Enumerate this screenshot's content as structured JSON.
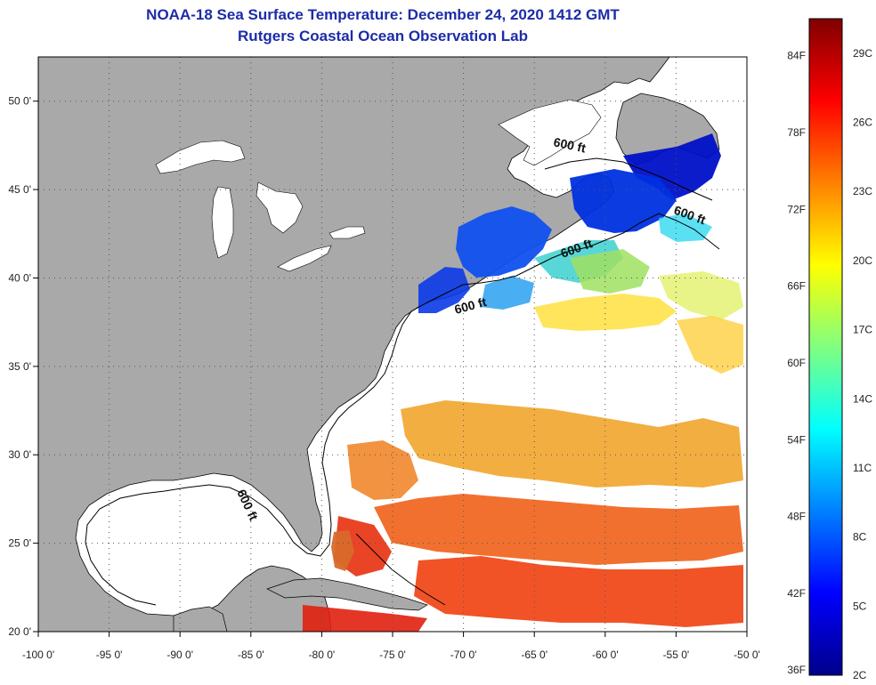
{
  "header": {
    "title": "NOAA-18 Sea Surface Temperature:  December 24, 2020 1412 GMT",
    "subtitle": "Rutgers Coastal Ocean Observation Lab"
  },
  "map": {
    "lon_labels": [
      "-100 0'",
      "-95 0'",
      "-90 0'",
      "-85 0'",
      "-80 0'",
      "-75 0'",
      "-70 0'",
      "-65 0'",
      "-60 0'",
      "-55 0'",
      "-50 0'"
    ],
    "lat_labels": [
      "50 0'",
      "45 0'",
      "40 0'",
      "35 0'",
      "30 0'",
      "25 0'",
      "20 0'"
    ],
    "lon_range": [
      -100,
      -50
    ],
    "lat_range": [
      20,
      52.5
    ],
    "contour_label": "600 ft",
    "land_color": "#a9a9a9",
    "ocean_color": "#ffffff"
  },
  "colorbar": {
    "fahrenheit_labels": [
      "84F",
      "78F",
      "72F",
      "66F",
      "60F",
      "54F",
      "48F",
      "42F",
      "36F"
    ],
    "celsius_labels": [
      "29C",
      "26C",
      "23C",
      "20C",
      "17C",
      "14C",
      "11C",
      "8C",
      "5C",
      "2C"
    ],
    "min_c": 2,
    "max_c": 30.5,
    "gradient_colors": [
      "#00008b",
      "#0000ff",
      "#0080ff",
      "#00ffff",
      "#80ff80",
      "#ffff00",
      "#ff8000",
      "#ff0000",
      "#800000"
    ]
  }
}
